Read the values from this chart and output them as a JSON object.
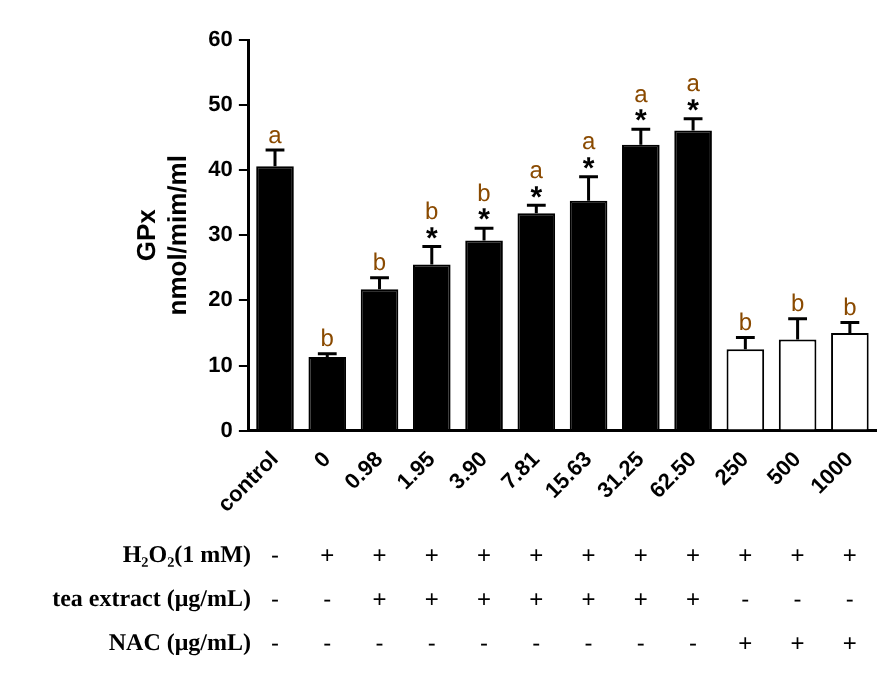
{
  "chart_data": {
    "type": "bar",
    "ylabel": "GPx nmol/mim/ml",
    "categories": [
      "control",
      "0",
      "0.98",
      "1.95",
      "3.90",
      "7.81",
      "15.63",
      "31.25",
      "62.50",
      "250",
      "500",
      "1000"
    ],
    "values": [
      40.6,
      11.3,
      21.7,
      25.5,
      29.2,
      33.4,
      35.3,
      43.9,
      46.1,
      12.5,
      14.0,
      15.0
    ],
    "colors": [
      "#000000",
      "#000000",
      "#000000",
      "#000000",
      "#000000",
      "#000000",
      "#000000",
      "#000000",
      "#000000",
      "#ffffff",
      "#ffffff",
      "#ffffff"
    ],
    "errors": [
      [
        40.6,
        43.1
      ],
      [
        11.3,
        11.8
      ],
      [
        21.7,
        23.5
      ],
      [
        25.5,
        28.3
      ],
      [
        29.2,
        31.1
      ],
      [
        33.4,
        34.6
      ],
      [
        35.3,
        39.0
      ],
      [
        43.9,
        46.3
      ],
      [
        46.1,
        47.9
      ],
      [
        12.5,
        14.3
      ],
      [
        14.0,
        17.2
      ],
      [
        15.0,
        16.6
      ]
    ],
    "ylim": [
      0,
      60
    ],
    "yticks": [
      0,
      10,
      20,
      30,
      40,
      50,
      60
    ],
    "grid": false,
    "legend": false,
    "annotations": [
      {
        "text": "a",
        "x": "control",
        "y": 43.1
      },
      {
        "text": "b",
        "x": "0",
        "y": 11.8
      },
      {
        "text": "b",
        "x": "0.98",
        "y": 23.5
      },
      {
        "text": "*",
        "x": "1.95",
        "y": 28.3
      },
      {
        "text": "b",
        "x": "1.95",
        "y": 28.3
      },
      {
        "text": "*",
        "x": "3.90",
        "y": 31.1
      },
      {
        "text": "b",
        "x": "3.90",
        "y": 31.1
      },
      {
        "text": "*",
        "x": "7.81",
        "y": 34.6
      },
      {
        "text": "a",
        "x": "7.81",
        "y": 34.6
      },
      {
        "text": "*",
        "x": "15.63",
        "y": 39.0
      },
      {
        "text": "a",
        "x": "15.63",
        "y": 39.0
      },
      {
        "text": "*",
        "x": "31.25",
        "y": 46.3
      },
      {
        "text": "a",
        "x": "31.25",
        "y": 46.3
      },
      {
        "text": "*",
        "x": "62.50",
        "y": 47.9
      },
      {
        "text": "a",
        "x": "62.50",
        "y": 47.9
      },
      {
        "text": "b",
        "x": "250",
        "y": 14.3
      },
      {
        "text": "b",
        "x": "500",
        "y": 17.2
      },
      {
        "text": "b",
        "x": "1000",
        "y": 16.6
      },
      "H₂O₂(1 mM)",
      "- + + + + + + + + + + +",
      "tea extract (μg/mL)",
      "- - + + + + + + + - - -",
      "NAC (μg/mL)",
      "- - - - - - - - - + + +"
    ]
  }
}
